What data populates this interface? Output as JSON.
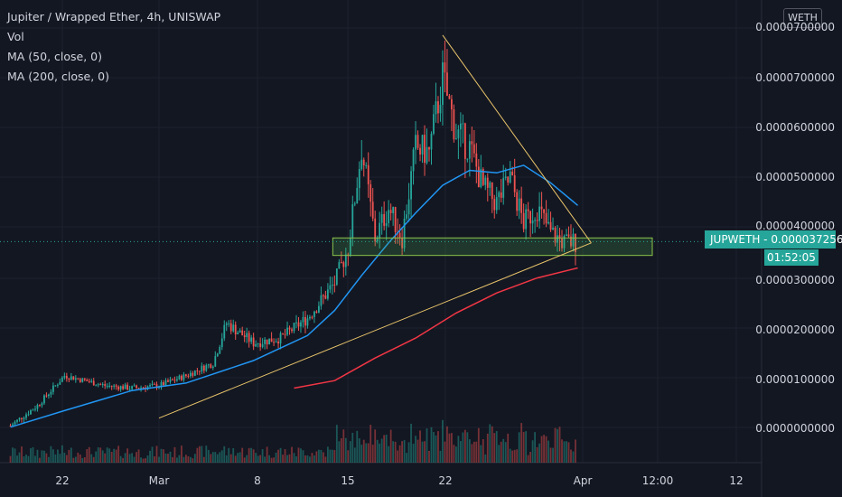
{
  "header": {
    "title": "Jupiter / Wrapped Ether, 4h, UNISWAP",
    "indicators": [
      "Vol",
      "MA (50, close, 0)",
      "MA (200, close, 0)"
    ]
  },
  "currency_button": "WETH",
  "price_label": {
    "symbol_value": "JUPWETH - 0.0000372568",
    "countdown": "01:52:05"
  },
  "colors": {
    "up": "#26a69a",
    "down": "#ef5350",
    "ma50": "#2196f3",
    "ma200": "#f23645",
    "trendline": "#e8c36a",
    "zone": "#4caf50",
    "background": "#131722"
  },
  "chart_data": {
    "type": "candlestick",
    "title": "Jupiter / Wrapped Ether, 4h, UNISWAP",
    "y_axis_ticks": [
      "0.0000700000",
      "0.0000600000",
      "0.0000500000",
      "0.0000400000",
      "0.0000300000",
      "0.0000200000",
      "0.0000100000",
      "0.0000000000"
    ],
    "x_axis_ticks": [
      "22",
      "Mar",
      "8",
      "15",
      "22",
      "Apr",
      "12:00",
      "12"
    ],
    "ylim": [
      -3e-06,
      8e-05
    ],
    "current_price": 3.72568e-05,
    "price_series": [
      {
        "t": "Feb 18",
        "close": 5e-07
      },
      {
        "t": "Feb 20",
        "close": 4.5e-06
      },
      {
        "t": "Feb 22",
        "close": 1.05e-05
      },
      {
        "t": "Feb 25",
        "close": 8.5e-06
      },
      {
        "t": "Feb 27",
        "close": 8e-06
      },
      {
        "t": "Mar 1",
        "close": 8.5e-06
      },
      {
        "t": "Mar 3",
        "close": 1.05e-05
      },
      {
        "t": "Mar 5",
        "close": 1.3e-05
      },
      {
        "t": "Mar 6",
        "close": 2.1e-05
      },
      {
        "t": "Mar 8",
        "close": 1.7e-05
      },
      {
        "t": "Mar 10",
        "close": 1.8e-05
      },
      {
        "t": "Mar 12",
        "close": 2.2e-05
      },
      {
        "t": "Mar 14",
        "close": 2.9e-05
      },
      {
        "t": "Mar 15",
        "close": 3.6e-05
      },
      {
        "t": "Mar 16",
        "close": 5.6e-05
      },
      {
        "t": "Mar 17",
        "close": 3.8e-05
      },
      {
        "t": "Mar 18",
        "close": 4.4e-05
      },
      {
        "t": "Mar 19",
        "close": 3.8e-05
      },
      {
        "t": "Mar 20",
        "close": 5.6e-05
      },
      {
        "t": "Mar 21",
        "close": 5.5e-05
      },
      {
        "t": "Mar 22",
        "close": 7e-05
      },
      {
        "t": "Mar 23",
        "close": 5.9e-05
      },
      {
        "t": "Mar 24",
        "close": 5.6e-05
      },
      {
        "t": "Mar 25",
        "close": 4.8e-05
      },
      {
        "t": "Mar 26",
        "close": 4.5e-05
      },
      {
        "t": "Mar 27",
        "close": 5e-05
      },
      {
        "t": "Mar 28",
        "close": 4.1e-05
      },
      {
        "t": "Mar 29",
        "close": 4.4e-05
      },
      {
        "t": "Mar 30",
        "close": 3.9e-05
      },
      {
        "t": "Mar 31",
        "close": 3.7e-05
      },
      {
        "t": "Apr 1",
        "close": 3.72568e-05
      }
    ],
    "ma50": [
      {
        "t": "Feb 18",
        "v": 2e-07
      },
      {
        "t": "Feb 22",
        "v": 3.5e-06
      },
      {
        "t": "Feb 27",
        "v": 7.5e-06
      },
      {
        "t": "Mar 3",
        "v": 9e-06
      },
      {
        "t": "Mar 8",
        "v": 1.35e-05
      },
      {
        "t": "Mar 12",
        "v": 1.85e-05
      },
      {
        "t": "Mar 14",
        "v": 2.35e-05
      },
      {
        "t": "Mar 16",
        "v": 3.05e-05
      },
      {
        "t": "Mar 18",
        "v": 3.7e-05
      },
      {
        "t": "Mar 20",
        "v": 4.3e-05
      },
      {
        "t": "Mar 22",
        "v": 4.85e-05
      },
      {
        "t": "Mar 24",
        "v": 5.15e-05
      },
      {
        "t": "Mar 26",
        "v": 5.1e-05
      },
      {
        "t": "Mar 28",
        "v": 5.25e-05
      },
      {
        "t": "Mar 30",
        "v": 4.9e-05
      },
      {
        "t": "Apr 1",
        "v": 4.45e-05
      }
    ],
    "ma200": [
      {
        "t": "Mar 11",
        "v": 8e-06
      },
      {
        "t": "Mar 14",
        "v": 9.5e-06
      },
      {
        "t": "Mar 17",
        "v": 1.4e-05
      },
      {
        "t": "Mar 20",
        "v": 1.8e-05
      },
      {
        "t": "Mar 23",
        "v": 2.3e-05
      },
      {
        "t": "Mar 26",
        "v": 2.7e-05
      },
      {
        "t": "Mar 29",
        "v": 3e-05
      },
      {
        "t": "Apr 1",
        "v": 3.2e-05
      }
    ],
    "support_zone": [
      3.45e-05,
      3.8e-05
    ],
    "trendlines": [
      {
        "name": "descending",
        "from": {
          "t": "Mar 22",
          "v": 7.85e-05
        },
        "to": {
          "t": "Apr 1",
          "v": 3.7e-05
        }
      },
      {
        "name": "ascending",
        "from": {
          "t": "Mar 1",
          "v": 2e-06
        },
        "to": {
          "t": "Apr 1",
          "v": 3.7e-05
        }
      }
    ]
  }
}
